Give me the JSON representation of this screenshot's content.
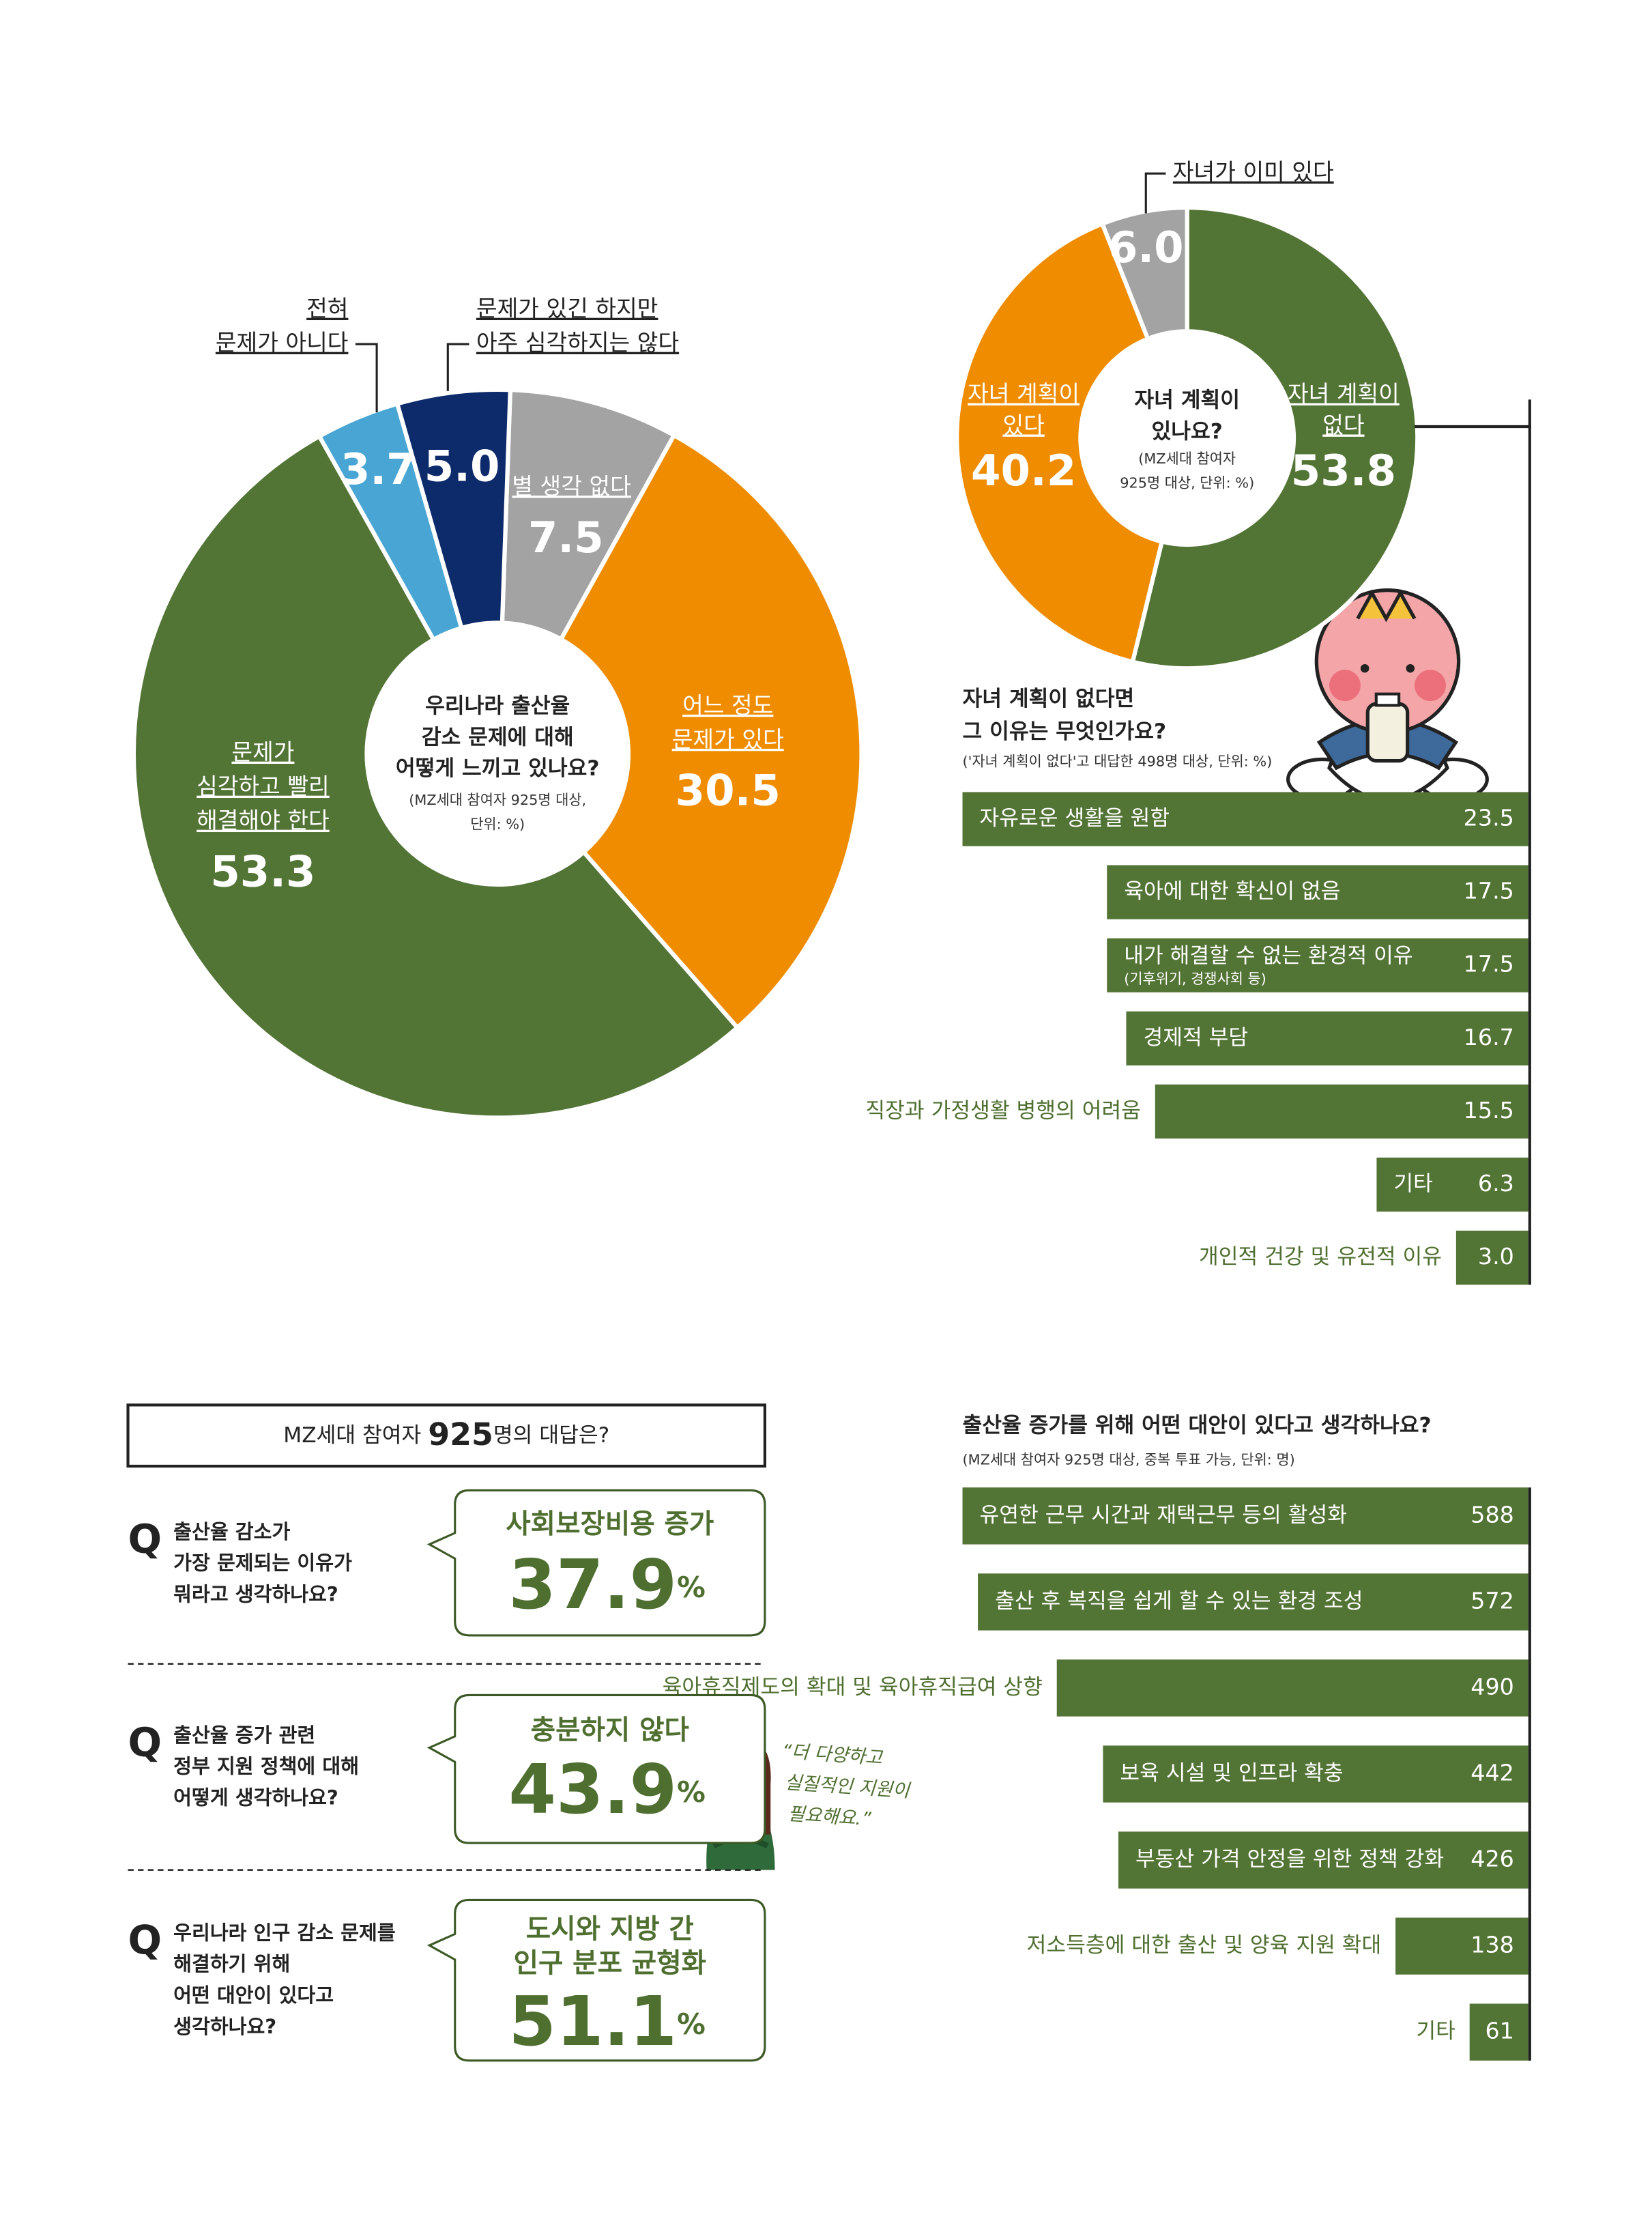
{
  "chart_data": [
    {
      "type": "donut",
      "title": [
        "우리나라 출산율",
        "감소 문제에 대해",
        "어떻게 느끼고 있나요?"
      ],
      "note": [
        "(MZ세대 참여자 925명 대상,",
        "단위: %)"
      ],
      "categories": [
        [
          "별 생각 없다"
        ],
        [
          "어느 정도",
          "문제가 있다"
        ],
        [
          "문제가",
          "심각하고 빨리",
          "해결해야 한다"
        ],
        [
          "전혀",
          "문제가 아니다"
        ],
        [
          "문제가 있긴 하지만",
          "아주 심각하지는 않다"
        ]
      ],
      "values": [
        7.5,
        30.5,
        53.3,
        3.7,
        5.0
      ],
      "value_labels": [
        "7.5",
        "30.5",
        "53.3",
        "3.7",
        "5.0"
      ],
      "colors": [
        "#a3a3a3",
        "#ef8c00",
        "#527435",
        "#49a6d4",
        "#0d2a6b"
      ]
    },
    {
      "type": "donut",
      "title": [
        "자녀 계획이",
        "있나요?"
      ],
      "note": [
        "(MZ세대 참여자",
        "925명 대상, 단위: %)"
      ],
      "categories": [
        [
          "자녀 계획이",
          "없다"
        ],
        [
          "자녀 계획이",
          "있다"
        ],
        [
          "자녀가 이미 있다"
        ]
      ],
      "values": [
        53.8,
        40.2,
        6.0
      ],
      "value_labels": [
        "53.8",
        "40.2",
        "6.0"
      ],
      "colors": [
        "#527435",
        "#ef8c00",
        "#a3a3a3"
      ]
    },
    {
      "type": "hbar",
      "title": [
        "자녀 계획이 없다면",
        "그 이유는 무엇인가요?"
      ],
      "note": "('자녀 계획이 없다'고 대답한 498명 대상, 단위: %)",
      "categories": [
        [
          "자유로운 생활을 원함"
        ],
        [
          "육아에 대한 확신이 없음"
        ],
        [
          "내가 해결할 수 없는 환경적 이유",
          "(기후위기, 경쟁사회 등)"
        ],
        [
          "경제적 부담"
        ],
        [
          "직장과 가정생활 병행의 어려움"
        ],
        [
          "기타"
        ],
        [
          "개인적 건강 및 유전적 이유"
        ]
      ],
      "values": [
        23.5,
        17.5,
        17.5,
        16.7,
        15.5,
        6.3,
        3.0
      ],
      "value_labels": [
        "23.5",
        "17.5",
        "17.5",
        "16.7",
        "15.5",
        "6.3",
        "3.0"
      ],
      "color": "#527435"
    },
    {
      "type": "hbar",
      "title": [
        "출산율 증가를 위해 어떤 대안이 있다고 생각하나요?"
      ],
      "note": "(MZ세대 참여자 925명 대상, 중복 투표 가능, 단위: 명)",
      "categories": [
        [
          "유연한 근무 시간과 재택근무 등의 활성화"
        ],
        [
          "출산 후 복직을 쉽게 할 수 있는 환경 조성"
        ],
        [
          "육아휴직제도의 확대 및 육아휴직급여 상향"
        ],
        [
          "보육 시설 및 인프라 확충"
        ],
        [
          "부동산 가격 안정을 위한 정책 강화"
        ],
        [
          "저소득층에 대한 출산 및 양육 지원 확대"
        ],
        [
          "기타"
        ]
      ],
      "values": [
        588,
        572,
        490,
        442,
        426,
        138,
        61
      ],
      "color": "#527435"
    }
  ],
  "qa": {
    "header": [
      "MZ세대 참여자 ",
      "925",
      "명의 대답은?"
    ],
    "q_mark": "Q",
    "items": [
      {
        "question": [
          "출산율 감소가",
          "가장 문제되는 이유가",
          "뭐라고 생각하나요?"
        ],
        "answer": [
          "사회보장비용 증가"
        ],
        "value": 37.9,
        "unit": "%"
      },
      {
        "question": [
          "출산율 증가 관련",
          "정부 지원 정책에 대해",
          "어떻게 생각하나요?"
        ],
        "answer": [
          "충분하지 않다"
        ],
        "value": 43.9,
        "unit": "%"
      },
      {
        "question": [
          "우리나라 인구 감소 문제를",
          "해결하기 위해",
          "어떤 대안이 있다고",
          "생각하나요?"
        ],
        "answer": [
          "도시와 지방 간",
          "인구 분포 균형화"
        ],
        "value": 51.1,
        "unit": "%"
      }
    ],
    "quote": [
      "“더 다양하고",
      "실질적인 지원이",
      "필요해요.”"
    ]
  }
}
